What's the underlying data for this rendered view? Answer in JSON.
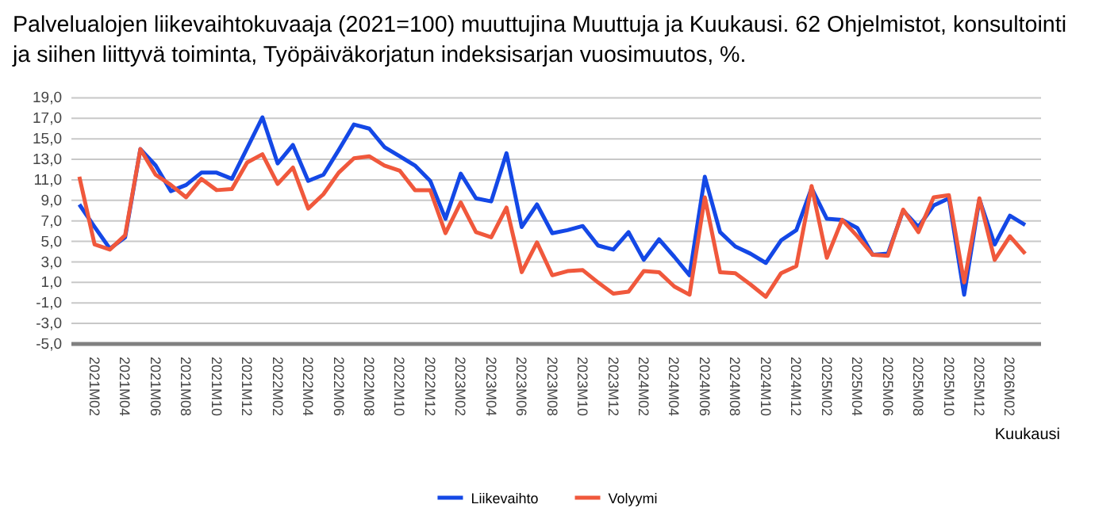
{
  "chart_data": {
    "type": "line",
    "title": "Palvelualojen liikevaihtokuvaaja (2021=100) muuttujina Muuttuja ja Kuukausi. 62 Ohjelmistot, konsultointi ja siihen liittyvä toiminta, Työpäiväkorjatun indeksisarjan vuosimuutos, %.",
    "xlabel": "Kuukausi",
    "categories": [
      null,
      "2021M02",
      null,
      "2021M04",
      null,
      "2021M06",
      null,
      "2021M08",
      null,
      "2021M10",
      null,
      "2021M12",
      null,
      "2022M02",
      null,
      "2022M04",
      null,
      "2022M06",
      null,
      "2022M08",
      null,
      "2022M10",
      null,
      "2022M12",
      null,
      "2023M02",
      null,
      "2023M04",
      null,
      "2023M06",
      null,
      "2023M08",
      null,
      "2023M10",
      null,
      "2023M12",
      null,
      "2024M02",
      null,
      "2024M04",
      null,
      "2024M06",
      null,
      "2024M08",
      null,
      "2024M10",
      null,
      "2024M12",
      null,
      "2025M02",
      null,
      "2025M04",
      null,
      "2025M06",
      null,
      "2025M08",
      null,
      "2025M10",
      null,
      "2025M12",
      null,
      "2026M02",
      null
    ],
    "series": [
      {
        "name": "Liikevaihto",
        "color": "#1448e6",
        "values": [
          8.6,
          6.4,
          4.3,
          5.4,
          14.0,
          12.4,
          9.9,
          10.5,
          11.7,
          11.7,
          11.1,
          14.1,
          17.1,
          12.6,
          14.4,
          10.9,
          11.5,
          13.9,
          16.4,
          16.0,
          14.2,
          13.3,
          12.4,
          10.9,
          7.2,
          11.6,
          9.2,
          8.9,
          13.6,
          6.4,
          8.6,
          5.8,
          6.1,
          6.5,
          4.6,
          4.2,
          5.9,
          3.2,
          5.2,
          3.5,
          1.7,
          11.3,
          5.9,
          4.5,
          3.8,
          2.9,
          5.1,
          6.1,
          10.2,
          7.2,
          7.1,
          6.3,
          3.7,
          3.8,
          8.0,
          6.4,
          8.5,
          9.2,
          -0.2,
          9.1,
          4.7,
          7.5,
          6.6
        ]
      },
      {
        "name": "Volyymi",
        "color": "#f0583c",
        "values": [
          11.3,
          4.7,
          4.2,
          5.6,
          14.0,
          11.5,
          10.5,
          9.3,
          11.1,
          10.0,
          10.1,
          12.7,
          13.5,
          10.6,
          12.2,
          8.2,
          9.6,
          11.7,
          13.1,
          13.3,
          12.4,
          11.9,
          10.0,
          10.0,
          5.8,
          8.8,
          5.9,
          5.4,
          8.3,
          2.0,
          4.9,
          1.7,
          2.1,
          2.2,
          1.0,
          -0.1,
          0.1,
          2.1,
          2.0,
          0.6,
          -0.2,
          9.3,
          2.0,
          1.9,
          0.8,
          -0.4,
          1.9,
          2.6,
          10.4,
          3.4,
          7.1,
          5.5,
          3.7,
          3.6,
          8.1,
          5.9,
          9.3,
          9.5,
          1.0,
          9.2,
          3.2,
          5.5,
          3.8
        ]
      }
    ],
    "ylim": [
      -5,
      19
    ],
    "yticks": [
      {
        "value": -5,
        "label": "-5,0"
      },
      {
        "value": -3,
        "label": "-3,0"
      },
      {
        "value": -1,
        "label": "-1,0"
      },
      {
        "value": 1,
        "label": "1,0"
      },
      {
        "value": 3,
        "label": "3,0"
      },
      {
        "value": 5,
        "label": "5,0"
      },
      {
        "value": 7,
        "label": "7,0"
      },
      {
        "value": 9,
        "label": "9,0"
      },
      {
        "value": 11,
        "label": "11,0"
      },
      {
        "value": 13,
        "label": "13,0"
      },
      {
        "value": 15,
        "label": "15,0"
      },
      {
        "value": 17,
        "label": "17,0"
      },
      {
        "value": 19,
        "label": "19,0"
      }
    ],
    "grid": "y",
    "legend": "bottom",
    "marker": "none",
    "line_style": "solid"
  }
}
